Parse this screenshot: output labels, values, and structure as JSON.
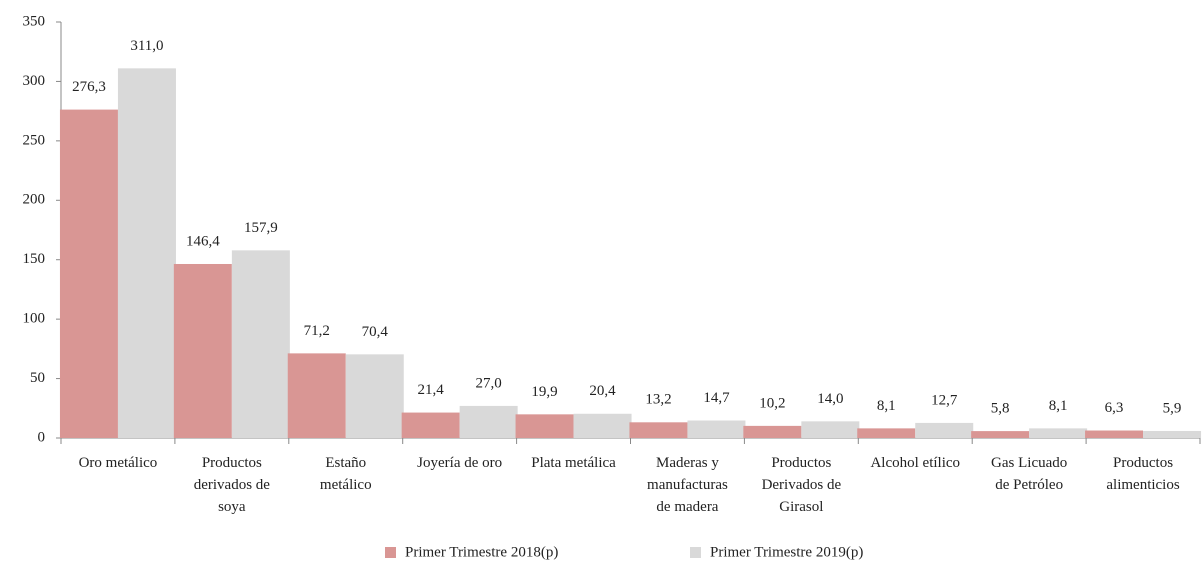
{
  "chart_data": {
    "type": "bar",
    "categories": [
      [
        "Oro metálico"
      ],
      [
        "Productos",
        "derivados de",
        "soya"
      ],
      [
        "Estaño",
        "metálico"
      ],
      [
        "Joyería de oro"
      ],
      [
        "Plata metálica"
      ],
      [
        "Maderas y",
        "manufacturas",
        "de madera"
      ],
      [
        "Productos",
        "Derivados de",
        "Girasol"
      ],
      [
        "Alcohol etílico"
      ],
      [
        "Gas Licuado",
        "de Petróleo"
      ],
      [
        "Productos",
        "alimenticios"
      ]
    ],
    "series": [
      {
        "name": "Primer Trimestre 2018(p)",
        "color": "#d99694",
        "values": [
          276.3,
          146.4,
          71.2,
          21.4,
          19.9,
          13.2,
          10.2,
          8.1,
          5.8,
          6.3
        ],
        "value_labels": [
          "276,3",
          "146,4",
          "71,2",
          "21,4",
          "19,9",
          "13,2",
          "10,2",
          "8,1",
          "5,8",
          "6,3"
        ]
      },
      {
        "name": "Primer Trimestre 2019(p)",
        "color": "#d9d9d9",
        "values": [
          311.0,
          157.9,
          70.4,
          27.0,
          20.4,
          14.7,
          14.0,
          12.7,
          8.1,
          5.9
        ],
        "value_labels": [
          "311,0",
          "157,9",
          "70,4",
          "27,0",
          "20,4",
          "14,7",
          "14,0",
          "12,7",
          "8,1",
          "5,9"
        ]
      }
    ],
    "ylim": [
      0,
      350
    ],
    "yticks": [
      0,
      50,
      100,
      150,
      200,
      250,
      300,
      350
    ],
    "grid": false,
    "legend": "bottom"
  }
}
